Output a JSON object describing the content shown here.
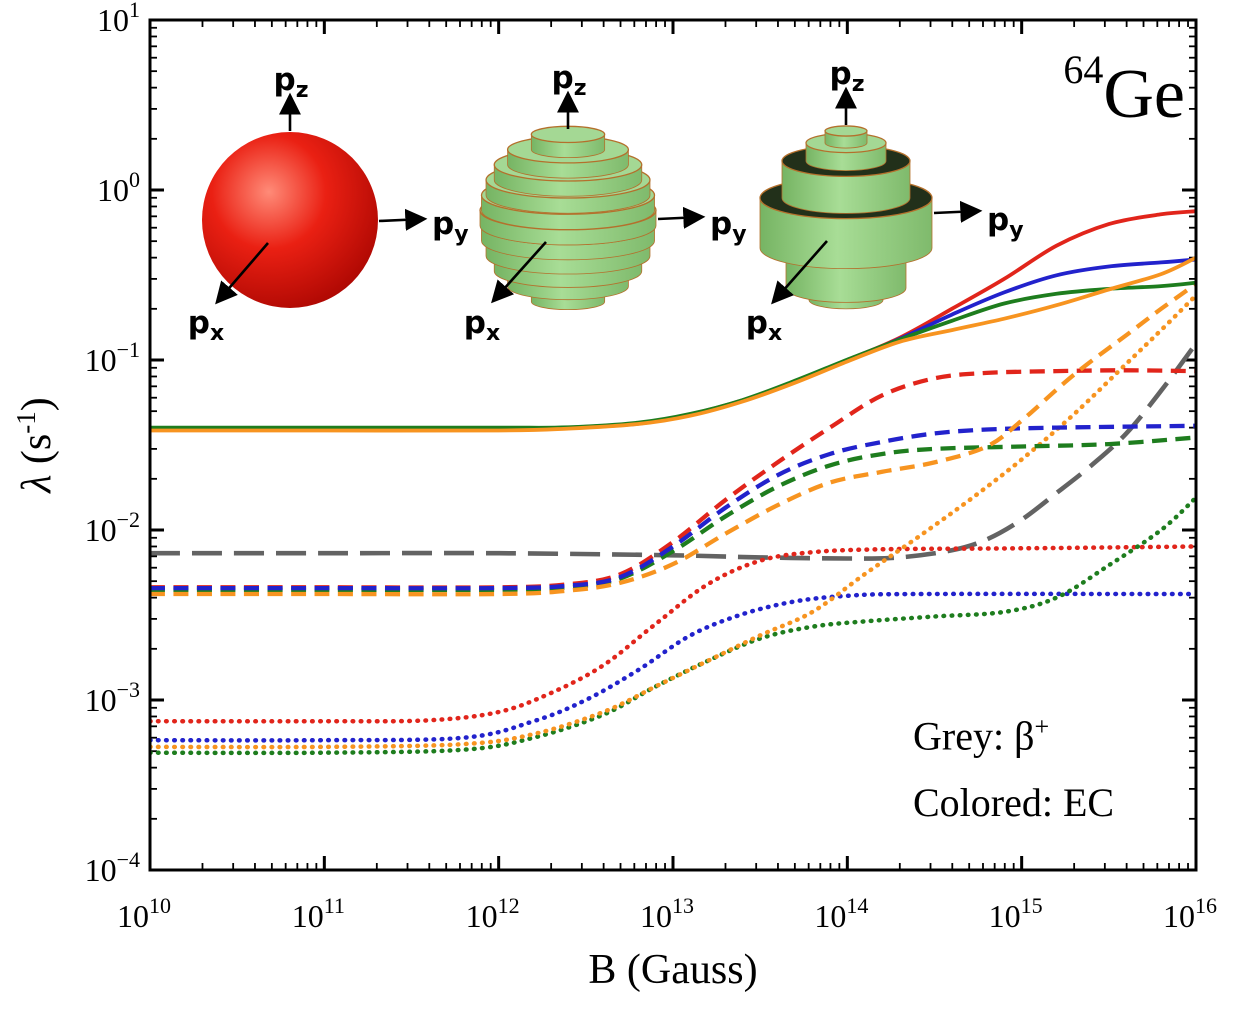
{
  "title_annotation": {
    "mass": "64",
    "element": "Ge"
  },
  "legend": {
    "grey_prefix": "Grey: ",
    "grey_symbol": "β",
    "grey_sup": "+",
    "colored": "Colored: EC"
  },
  "axes": {
    "x": {
      "title": "B (Gauss)",
      "base": "10",
      "exponents": [
        "10",
        "11",
        "12",
        "13",
        "14",
        "15",
        "16"
      ]
    },
    "y": {
      "title_pre": "λ (s",
      "title_sup": "-1",
      "title_post": ")",
      "base": "10",
      "exponents": [
        "1",
        "0",
        "−1",
        "−2",
        "−3",
        "−4"
      ]
    }
  },
  "insets": {
    "momentum_label": "p",
    "sub_z": "z",
    "sub_y": "y",
    "sub_x": "x",
    "shapes": [
      "red-sphere",
      "green-disk-sphere",
      "green-cylinder-stack"
    ]
  },
  "chart_data": {
    "type": "line",
    "title": "",
    "xlabel": "B (Gauss)",
    "ylabel": "λ (s⁻¹)",
    "x_scale": "log",
    "y_scale": "log",
    "xlim": [
      10000000000.0,
      1e+16
    ],
    "ylim": [
      0.0001,
      10
    ],
    "grid": false,
    "legend_position": "none",
    "annotations": [
      "⁶⁴Ge",
      "Grey: β⁺",
      "Colored: EC"
    ],
    "series": [
      {
        "name": "beta-plus-grey",
        "group": "β+",
        "color": "#636363",
        "style": "longdash",
        "points": [
          [
            10,
            0.0073
          ],
          [
            11,
            0.0073
          ],
          [
            12,
            0.0073
          ],
          [
            13,
            0.0071
          ],
          [
            13.5,
            0.0069
          ],
          [
            14.0,
            0.0068
          ],
          [
            14.3,
            0.0069
          ],
          [
            14.6,
            0.0076
          ],
          [
            14.8,
            0.0088
          ],
          [
            15.0,
            0.0115
          ],
          [
            15.2,
            0.0165
          ],
          [
            15.4,
            0.024
          ],
          [
            15.6,
            0.037
          ],
          [
            15.8,
            0.066
          ],
          [
            16,
            0.125
          ]
        ]
      },
      {
        "name": "EC-dotted-red",
        "group": "EC",
        "color": "#e1251b",
        "style": "dotted",
        "points": [
          [
            10,
            0.00075
          ],
          [
            11,
            0.00075
          ],
          [
            11.6,
            0.00076
          ],
          [
            12.0,
            0.00085
          ],
          [
            12.3,
            0.0011
          ],
          [
            12.6,
            0.0016
          ],
          [
            12.9,
            0.0028
          ],
          [
            13.2,
            0.0048
          ],
          [
            13.5,
            0.0066
          ],
          [
            13.8,
            0.0074
          ],
          [
            14.2,
            0.0077
          ],
          [
            15.0,
            0.0078
          ],
          [
            16,
            0.008
          ]
        ]
      },
      {
        "name": "EC-dotted-blue",
        "group": "EC",
        "color": "#2222cc",
        "style": "dotted",
        "points": [
          [
            10,
            0.00058
          ],
          [
            11,
            0.00058
          ],
          [
            11.8,
            0.0006
          ],
          [
            12.2,
            0.00075
          ],
          [
            12.5,
            0.001
          ],
          [
            12.8,
            0.0015
          ],
          [
            13.1,
            0.0024
          ],
          [
            13.4,
            0.0032
          ],
          [
            13.7,
            0.0038
          ],
          [
            14.0,
            0.0041
          ],
          [
            14.4,
            0.0042
          ],
          [
            16,
            0.0042
          ]
        ]
      },
      {
        "name": "EC-dotted-green",
        "group": "EC",
        "color": "#1e7d1e",
        "style": "dotted",
        "points": [
          [
            10,
            0.00049
          ],
          [
            11,
            0.00049
          ],
          [
            11.8,
            0.00051
          ],
          [
            12.2,
            0.0006
          ],
          [
            12.6,
            0.00082
          ],
          [
            12.9,
            0.0012
          ],
          [
            13.2,
            0.0017
          ],
          [
            13.5,
            0.0023
          ],
          [
            13.8,
            0.0027
          ],
          [
            14.1,
            0.0029
          ],
          [
            14.5,
            0.0031
          ],
          [
            14.9,
            0.0033
          ],
          [
            15.2,
            0.004
          ],
          [
            15.5,
            0.0062
          ],
          [
            15.8,
            0.01
          ],
          [
            16,
            0.0155
          ]
        ]
      },
      {
        "name": "EC-dotted-orange",
        "group": "EC",
        "color": "#f79420",
        "style": "dotted",
        "points": [
          [
            10,
            0.00053
          ],
          [
            11,
            0.00053
          ],
          [
            11.8,
            0.00055
          ],
          [
            12.2,
            0.00063
          ],
          [
            12.6,
            0.00085
          ],
          [
            12.9,
            0.0012
          ],
          [
            13.2,
            0.0017
          ],
          [
            13.5,
            0.0024
          ],
          [
            13.8,
            0.0033
          ],
          [
            14.1,
            0.0055
          ],
          [
            14.4,
            0.009
          ],
          [
            14.7,
            0.015
          ],
          [
            15.0,
            0.026
          ],
          [
            15.3,
            0.048
          ],
          [
            15.6,
            0.095
          ],
          [
            15.8,
            0.15
          ],
          [
            16,
            0.24
          ]
        ]
      },
      {
        "name": "EC-dashed-red",
        "group": "EC",
        "color": "#e1251b",
        "style": "dashed",
        "points": [
          [
            10,
            0.0046
          ],
          [
            11,
            0.0046
          ],
          [
            12,
            0.0046
          ],
          [
            12.4,
            0.0048
          ],
          [
            12.7,
            0.0055
          ],
          [
            13.0,
            0.0085
          ],
          [
            13.3,
            0.015
          ],
          [
            13.6,
            0.025
          ],
          [
            13.9,
            0.04
          ],
          [
            14.2,
            0.062
          ],
          [
            14.5,
            0.078
          ],
          [
            14.8,
            0.084
          ],
          [
            15.2,
            0.086
          ],
          [
            15.6,
            0.087
          ],
          [
            16,
            0.086
          ]
        ]
      },
      {
        "name": "EC-dashed-green",
        "group": "EC",
        "color": "#1e7d1e",
        "style": "dashed",
        "points": [
          [
            10,
            0.00445
          ],
          [
            11,
            0.00445
          ],
          [
            12,
            0.00445
          ],
          [
            12.4,
            0.0046
          ],
          [
            12.7,
            0.0052
          ],
          [
            13.0,
            0.0075
          ],
          [
            13.3,
            0.012
          ],
          [
            13.6,
            0.018
          ],
          [
            13.9,
            0.024
          ],
          [
            14.2,
            0.028
          ],
          [
            14.5,
            0.03
          ],
          [
            15.0,
            0.031
          ],
          [
            15.5,
            0.032
          ],
          [
            16,
            0.035
          ]
        ]
      },
      {
        "name": "EC-dashed-blue",
        "group": "EC",
        "color": "#2222cc",
        "style": "dashed",
        "points": [
          [
            10,
            0.00455
          ],
          [
            11,
            0.00455
          ],
          [
            12,
            0.00455
          ],
          [
            12.4,
            0.0047
          ],
          [
            12.7,
            0.0053
          ],
          [
            13.0,
            0.008
          ],
          [
            13.3,
            0.0135
          ],
          [
            13.6,
            0.021
          ],
          [
            13.9,
            0.028
          ],
          [
            14.2,
            0.033
          ],
          [
            14.5,
            0.037
          ],
          [
            14.8,
            0.039
          ],
          [
            15.2,
            0.04
          ],
          [
            16,
            0.041
          ]
        ]
      },
      {
        "name": "EC-dashed-orange",
        "group": "EC",
        "color": "#f79420",
        "style": "dashed",
        "points": [
          [
            10,
            0.0042
          ],
          [
            11,
            0.0042
          ],
          [
            12,
            0.0042
          ],
          [
            12.4,
            0.0044
          ],
          [
            12.7,
            0.0049
          ],
          [
            13.0,
            0.0063
          ],
          [
            13.3,
            0.0095
          ],
          [
            13.6,
            0.014
          ],
          [
            13.9,
            0.019
          ],
          [
            14.2,
            0.022
          ],
          [
            14.5,
            0.025
          ],
          [
            14.8,
            0.031
          ],
          [
            15.0,
            0.044
          ],
          [
            15.3,
            0.082
          ],
          [
            15.6,
            0.14
          ],
          [
            15.8,
            0.2
          ],
          [
            16,
            0.28
          ]
        ]
      },
      {
        "name": "EC-solid-red",
        "group": "EC",
        "color": "#e1251b",
        "style": "solid",
        "points": [
          [
            10,
            0.0395
          ],
          [
            11,
            0.0395
          ],
          [
            12,
            0.0395
          ],
          [
            12.4,
            0.04
          ],
          [
            12.8,
            0.0425
          ],
          [
            13.1,
            0.048
          ],
          [
            13.4,
            0.058
          ],
          [
            13.7,
            0.075
          ],
          [
            14.0,
            0.1
          ],
          [
            14.3,
            0.135
          ],
          [
            14.6,
            0.2
          ],
          [
            14.9,
            0.3
          ],
          [
            15.2,
            0.47
          ],
          [
            15.5,
            0.63
          ],
          [
            15.8,
            0.72
          ],
          [
            16,
            0.75
          ]
        ]
      },
      {
        "name": "EC-solid-blue",
        "group": "EC",
        "color": "#2222cc",
        "style": "solid",
        "points": [
          [
            10,
            0.039
          ],
          [
            11,
            0.039
          ],
          [
            12,
            0.039
          ],
          [
            12.4,
            0.0398
          ],
          [
            12.8,
            0.0422
          ],
          [
            13.1,
            0.0475
          ],
          [
            13.4,
            0.0575
          ],
          [
            13.7,
            0.074
          ],
          [
            14.0,
            0.099
          ],
          [
            14.3,
            0.133
          ],
          [
            14.6,
            0.185
          ],
          [
            14.9,
            0.25
          ],
          [
            15.2,
            0.315
          ],
          [
            15.5,
            0.355
          ],
          [
            15.8,
            0.375
          ],
          [
            16,
            0.39
          ]
        ]
      },
      {
        "name": "EC-solid-green",
        "group": "EC",
        "color": "#1e7d1e",
        "style": "solid",
        "points": [
          [
            10,
            0.04
          ],
          [
            11,
            0.04
          ],
          [
            12,
            0.04
          ],
          [
            12.4,
            0.0402
          ],
          [
            12.8,
            0.0428
          ],
          [
            13.1,
            0.0482
          ],
          [
            13.4,
            0.0582
          ],
          [
            13.7,
            0.0755
          ],
          [
            14.0,
            0.1005
          ],
          [
            14.3,
            0.132
          ],
          [
            14.6,
            0.17
          ],
          [
            14.9,
            0.215
          ],
          [
            15.2,
            0.245
          ],
          [
            15.5,
            0.262
          ],
          [
            15.8,
            0.272
          ],
          [
            16,
            0.285
          ]
        ]
      },
      {
        "name": "EC-solid-orange",
        "group": "EC",
        "color": "#f79420",
        "style": "solid",
        "points": [
          [
            10,
            0.0385
          ],
          [
            11,
            0.0385
          ],
          [
            12,
            0.0385
          ],
          [
            12.4,
            0.0395
          ],
          [
            12.8,
            0.042
          ],
          [
            13.1,
            0.047
          ],
          [
            13.4,
            0.057
          ],
          [
            13.7,
            0.0735
          ],
          [
            14.0,
            0.098
          ],
          [
            14.3,
            0.128
          ],
          [
            14.6,
            0.15
          ],
          [
            14.9,
            0.175
          ],
          [
            15.2,
            0.21
          ],
          [
            15.5,
            0.26
          ],
          [
            15.8,
            0.32
          ],
          [
            16,
            0.4
          ]
        ]
      }
    ]
  }
}
